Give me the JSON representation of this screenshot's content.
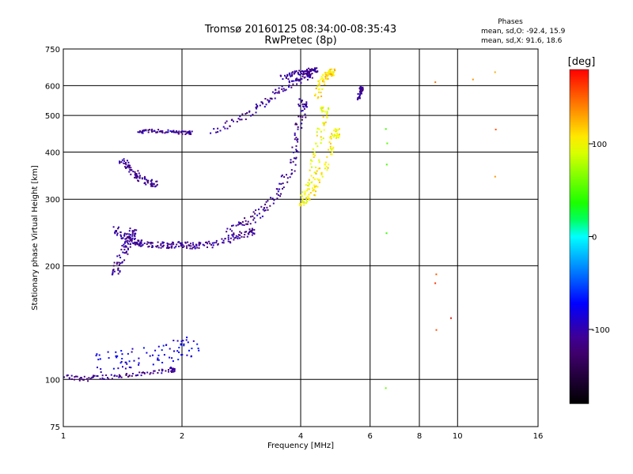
{
  "chart_data": {
    "type": "scatter",
    "title": "Tromsø 20160125 08:34:00-08:35:43",
    "subtitle": "RwPretec (8p)",
    "xlabel": "Frequency [MHz]",
    "ylabel": "Stationary phase Virtual Height [km]",
    "x_scale": "log",
    "y_scale": "log",
    "xlim": [
      1,
      16
    ],
    "ylim": [
      75,
      750
    ],
    "x_ticks": [
      1,
      2,
      4,
      6,
      8,
      10,
      16
    ],
    "y_ticks": [
      75,
      100,
      200,
      300,
      400,
      500,
      600,
      750
    ],
    "grid": true,
    "stats": {
      "heading": "Phases",
      "line_o": "mean, sd,O: -92.4, 15.9",
      "line_x": "mean, sd,X:  91.6, 18.6"
    },
    "colorbar": {
      "label": "[deg]",
      "ticks": [
        100,
        0,
        -100
      ],
      "range": [
        -180,
        180
      ]
    },
    "traces": [
      {
        "x": [
          1.0,
          1.1,
          1.2,
          1.35,
          1.5,
          1.7,
          1.9
        ],
        "y": [
          102,
          100,
          101,
          102,
          103,
          104,
          106
        ],
        "phase": -110,
        "spread": 0.03
      },
      {
        "x": [
          1.2,
          1.35,
          1.5,
          1.7,
          1.9,
          2.1
        ],
        "y": [
          110,
          112,
          114,
          116,
          118,
          122
        ],
        "phase": -80,
        "spread": 0.12
      },
      {
        "x": [
          1.35,
          1.4,
          1.45,
          1.5,
          1.55,
          1.6,
          1.7,
          1.8,
          1.9,
          2.0,
          2.1,
          2.2,
          2.4,
          2.6,
          2.8,
          3.0
        ],
        "y": [
          250,
          240,
          235,
          232,
          230,
          229,
          228,
          227,
          227,
          227,
          226,
          226,
          228,
          234,
          240,
          246
        ],
        "phase": -110,
        "spread": 0.04
      },
      {
        "x": [
          1.35,
          1.38,
          1.42,
          1.45,
          1.5
        ],
        "y": [
          190,
          200,
          215,
          230,
          245
        ],
        "phase": -110,
        "spread": 0.05
      },
      {
        "x": [
          1.4,
          1.45,
          1.5,
          1.55,
          1.6,
          1.7
        ],
        "y": [
          380,
          370,
          355,
          345,
          335,
          330
        ],
        "phase": -110,
        "spread": 0.04
      },
      {
        "x": [
          1.55,
          1.65,
          1.75,
          1.9,
          2.0,
          2.1
        ],
        "y": [
          450,
          455,
          455,
          452,
          450,
          450
        ],
        "phase": -110,
        "spread": 0.02
      },
      {
        "x": [
          2.6,
          2.8,
          3.0,
          3.2,
          3.4,
          3.6,
          3.8,
          3.9,
          4.0,
          4.05
        ],
        "y": [
          245,
          255,
          265,
          280,
          300,
          330,
          370,
          420,
          480,
          540
        ],
        "phase": -110,
        "spread": 0.05
      },
      {
        "x": [
          2.4,
          2.7,
          3.0,
          3.3,
          3.5,
          3.8,
          4.0,
          4.2
        ],
        "y": [
          450,
          480,
          510,
          545,
          575,
          605,
          625,
          640
        ],
        "phase": -110,
        "spread": 0.04
      },
      {
        "x": [
          3.6,
          3.8,
          4.0,
          4.2,
          4.35
        ],
        "y": [
          630,
          640,
          650,
          655,
          660
        ],
        "phase": -110,
        "spread": 0.03
      },
      {
        "x": [
          4.0,
          4.1,
          4.2,
          4.3,
          4.4,
          4.5,
          4.6
        ],
        "y": [
          290,
          300,
          320,
          350,
          400,
          460,
          520
        ],
        "phase": 100,
        "spread": 0.05
      },
      {
        "x": [
          4.2,
          4.4,
          4.6,
          4.8,
          4.9
        ],
        "y": [
          300,
          330,
          370,
          420,
          450
        ],
        "phase": 105,
        "spread": 0.05
      },
      {
        "x": [
          4.4,
          4.5,
          4.6,
          4.7,
          4.8
        ],
        "y": [
          560,
          600,
          630,
          645,
          650
        ],
        "phase": 110,
        "spread": 0.04
      },
      {
        "x": [
          5.6,
          5.65,
          5.7
        ],
        "y": [
          550,
          570,
          590
        ],
        "phase": -110,
        "spread": 0.02
      },
      {
        "x": [
          6.6,
          6.6,
          6.6,
          6.6,
          6.6
        ],
        "y": [
          460,
          420,
          370,
          245,
          95
        ],
        "phase": 60,
        "spread": 0.01
      },
      {
        "x": [
          8.8,
          8.8,
          8.8,
          9.6
        ],
        "y": [
          190,
          180,
          135,
          145
        ],
        "phase": 160,
        "spread": 0.01
      },
      {
        "x": [
          8.8,
          11.0,
          12.5,
          12.5,
          12.5
        ],
        "y": [
          615,
          620,
          650,
          460,
          345
        ],
        "phase": 140,
        "spread": 0.01
      }
    ]
  }
}
